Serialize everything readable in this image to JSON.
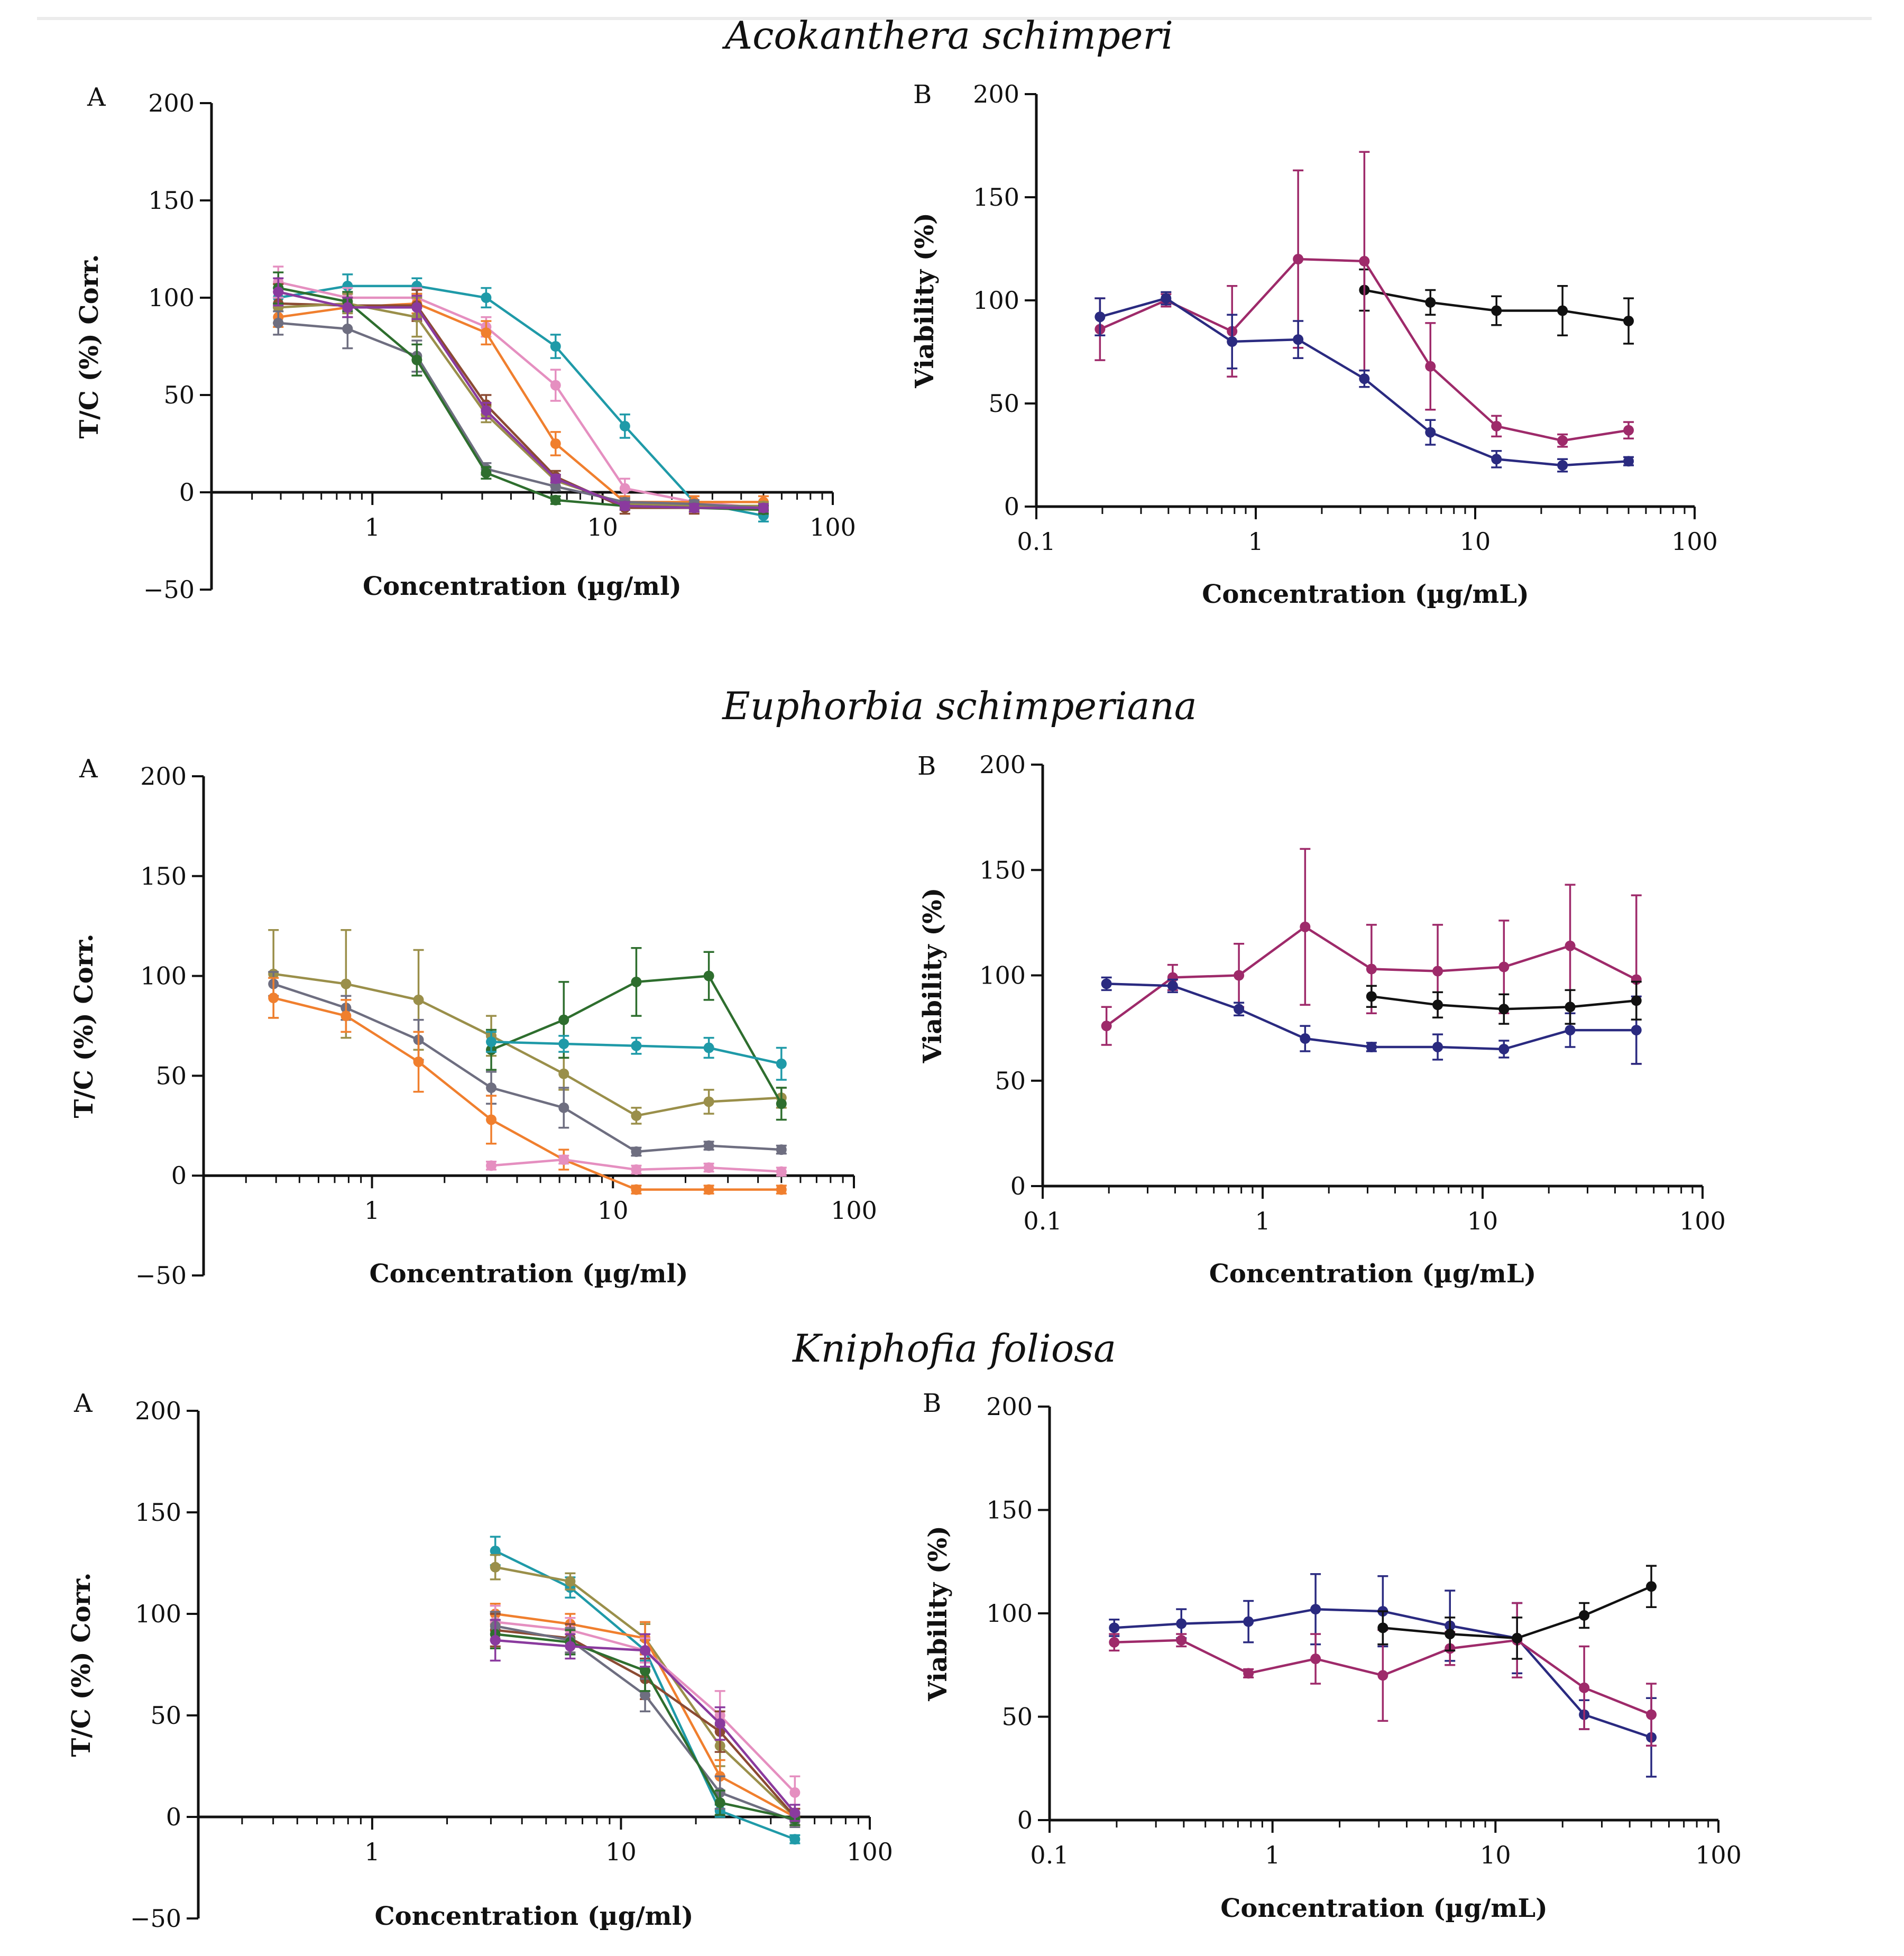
{
  "figure": {
    "section_titles": [
      "Acokanthera schimperi",
      "Euphorbia schimperiana",
      "Kniphofia foliosa"
    ]
  },
  "chart_data": [
    {
      "id": "aco-A",
      "type": "line",
      "panel_label": "A",
      "title": "Acokanthera schimperi",
      "xlabel": "Concentration (µg/ml)",
      "ylabel": "T/C (%) Corr.",
      "xscale": "log",
      "xlim": [
        0.2,
        100
      ],
      "ylim": [
        -50,
        200
      ],
      "xticks": [
        1,
        10,
        100
      ],
      "xtick_labels": [
        "1",
        "10",
        "100"
      ],
      "yticks": [
        -50,
        0,
        50,
        100,
        150,
        200
      ],
      "ytick_labels": [
        "−50",
        "0",
        "50",
        "100",
        "150",
        "200"
      ],
      "x": [
        0.39,
        0.78,
        1.56,
        3.12,
        6.25,
        12.5,
        25,
        50
      ],
      "series": [
        {
          "name": "teal",
          "color": "#1f9aa8",
          "values": [
            100,
            106,
            106,
            100,
            75,
            34,
            -5,
            -12
          ],
          "errors": [
            5,
            6,
            4,
            5,
            6,
            6,
            3,
            3
          ]
        },
        {
          "name": "pink",
          "color": "#e58fc0",
          "values": [
            108,
            100,
            100,
            85,
            55,
            2,
            -5,
            -8
          ],
          "errors": [
            8,
            5,
            5,
            5,
            8,
            5,
            3,
            3
          ]
        },
        {
          "name": "orange",
          "color": "#f07f2e",
          "values": [
            90,
            95,
            97,
            82,
            25,
            -5,
            -5,
            -5
          ],
          "errors": [
            5,
            5,
            5,
            6,
            6,
            3,
            3,
            3
          ]
        },
        {
          "name": "brown",
          "color": "#8b4a32",
          "values": [
            97,
            96,
            96,
            45,
            8,
            -8,
            -8,
            -8
          ],
          "errors": [
            10,
            6,
            8,
            5,
            3,
            3,
            3,
            3
          ]
        },
        {
          "name": "olive",
          "color": "#9a8f4a",
          "values": [
            95,
            97,
            90,
            40,
            6,
            -6,
            -7,
            -7
          ],
          "errors": [
            8,
            5,
            10,
            4,
            3,
            2,
            2,
            2
          ]
        },
        {
          "name": "gray",
          "color": "#6e6e80",
          "values": [
            87,
            84,
            70,
            12,
            3,
            -5,
            -6,
            -8
          ],
          "errors": [
            6,
            10,
            8,
            3,
            2,
            2,
            2,
            2
          ]
        },
        {
          "name": "dark green",
          "color": "#2e6e2e",
          "values": [
            105,
            98,
            68,
            10,
            -4,
            -7,
            -8,
            -9
          ],
          "errors": [
            8,
            5,
            8,
            3,
            2,
            2,
            2,
            2
          ]
        },
        {
          "name": "purple",
          "color": "#8a3a9e",
          "values": [
            103,
            95,
            95,
            42,
            7,
            -7,
            -8,
            -8
          ],
          "errors": [
            7,
            5,
            6,
            4,
            2,
            2,
            2,
            2
          ]
        }
      ]
    },
    {
      "id": "aco-B",
      "type": "line",
      "panel_label": "B",
      "title": "Acokanthera schimperi",
      "xlabel": "Concentration (µg/mL)",
      "ylabel": "Viability (%)",
      "xscale": "log",
      "xlim": [
        0.1,
        100
      ],
      "ylim": [
        0,
        200
      ],
      "xticks": [
        0.1,
        1,
        10,
        100
      ],
      "xtick_labels": [
        "0.1",
        "1",
        "10",
        "100"
      ],
      "yticks": [
        0,
        50,
        100,
        150,
        200
      ],
      "ytick_labels": [
        "0",
        "50",
        "100",
        "150",
        "200"
      ],
      "series": [
        {
          "name": "black",
          "color": "#111111",
          "x": [
            3.125,
            6.25,
            12.5,
            25,
            50
          ],
          "values": [
            105,
            99,
            95,
            95,
            90
          ],
          "errors": [
            10,
            6,
            7,
            12,
            11
          ]
        },
        {
          "name": "magenta",
          "color": "#9e2a6a",
          "x": [
            0.195,
            0.39,
            0.78,
            1.56,
            3.125,
            6.25,
            12.5,
            25,
            50
          ],
          "values": [
            86,
            100,
            85,
            120,
            119,
            68,
            39,
            32,
            37
          ],
          "errors": [
            15,
            3,
            22,
            43,
            53,
            21,
            5,
            3,
            4
          ]
        },
        {
          "name": "navy",
          "color": "#2a2a80",
          "x": [
            0.195,
            0.39,
            0.78,
            1.56,
            3.125,
            6.25,
            12.5,
            25,
            50
          ],
          "values": [
            92,
            101,
            80,
            81,
            62,
            36,
            23,
            20,
            22
          ],
          "errors": [
            9,
            3,
            13,
            9,
            4,
            6,
            4,
            3,
            2
          ]
        }
      ]
    },
    {
      "id": "eup-A",
      "type": "line",
      "panel_label": "A",
      "title": "Euphorbia schimperiana",
      "xlabel": "Concentration (µg/ml)",
      "ylabel": "T/C (%) Corr.",
      "xscale": "log",
      "xlim": [
        0.2,
        100
      ],
      "ylim": [
        -50,
        200
      ],
      "xticks": [
        1,
        10,
        100
      ],
      "xtick_labels": [
        "1",
        "10",
        "100"
      ],
      "yticks": [
        -50,
        0,
        50,
        100,
        150,
        200
      ],
      "ytick_labels": [
        "−50",
        "0",
        "50",
        "100",
        "150",
        "200"
      ],
      "series": [
        {
          "name": "olive",
          "color": "#9a8f4a",
          "x": [
            0.39,
            0.78,
            1.56,
            3.125,
            6.25,
            12.5,
            25,
            50
          ],
          "values": [
            101,
            96,
            88,
            70,
            51,
            30,
            37,
            39
          ],
          "errors": [
            22,
            27,
            25,
            10,
            8,
            4,
            6,
            5
          ]
        },
        {
          "name": "gray",
          "color": "#6e6e80",
          "x": [
            0.39,
            0.78,
            1.56,
            3.125,
            6.25,
            12.5,
            25,
            50
          ],
          "values": [
            96,
            84,
            68,
            44,
            34,
            12,
            15,
            13
          ],
          "errors": [
            6,
            6,
            10,
            8,
            10,
            2,
            2,
            2
          ]
        },
        {
          "name": "orange",
          "color": "#f07f2e",
          "x": [
            0.39,
            0.78,
            1.56,
            3.125,
            6.25,
            12.5,
            25,
            50
          ],
          "values": [
            89,
            80,
            57,
            28,
            8,
            -7,
            -7,
            -7
          ],
          "errors": [
            10,
            8,
            15,
            12,
            5,
            2,
            2,
            2
          ]
        },
        {
          "name": "dark green",
          "color": "#2e6e2e",
          "x": [
            3.125,
            6.25,
            12.5,
            25,
            50
          ],
          "values": [
            63,
            78,
            97,
            100,
            36
          ],
          "errors": [
            10,
            19,
            17,
            12,
            8
          ]
        },
        {
          "name": "teal",
          "color": "#1f9aa8",
          "x": [
            3.125,
            6.25,
            12.5,
            25,
            50
          ],
          "values": [
            67,
            66,
            65,
            64,
            56
          ],
          "errors": [
            5,
            4,
            4,
            5,
            8
          ]
        },
        {
          "name": "pink",
          "color": "#e58fc0",
          "x": [
            3.125,
            6.25,
            12.5,
            25,
            50
          ],
          "values": [
            5,
            8,
            3,
            4,
            2
          ],
          "errors": [
            2,
            2,
            2,
            2,
            2
          ]
        }
      ]
    },
    {
      "id": "eup-B",
      "type": "line",
      "panel_label": "B",
      "title": "Euphorbia schimperiana",
      "xlabel": "Concentration (µg/mL)",
      "ylabel": "Viability (%)",
      "xscale": "log",
      "xlim": [
        0.1,
        100
      ],
      "ylim": [
        0,
        200
      ],
      "xticks": [
        0.1,
        1,
        10,
        100
      ],
      "xtick_labels": [
        "0.1",
        "1",
        "10",
        "100"
      ],
      "yticks": [
        0,
        50,
        100,
        150,
        200
      ],
      "ytick_labels": [
        "0",
        "50",
        "100",
        "150",
        "200"
      ],
      "series": [
        {
          "name": "magenta",
          "color": "#9e2a6a",
          "x": [
            0.195,
            0.39,
            0.78,
            1.56,
            3.125,
            6.25,
            12.5,
            25,
            50
          ],
          "values": [
            76,
            99,
            100,
            123,
            103,
            102,
            104,
            114,
            98
          ],
          "errors": [
            9,
            6,
            15,
            37,
            21,
            22,
            22,
            29,
            40
          ]
        },
        {
          "name": "navy",
          "color": "#2a2a80",
          "x": [
            0.195,
            0.39,
            0.78,
            1.56,
            3.125,
            6.25,
            12.5,
            25,
            50
          ],
          "values": [
            96,
            95,
            84,
            70,
            66,
            66,
            65,
            74,
            74
          ],
          "errors": [
            3,
            3,
            3,
            6,
            2,
            6,
            4,
            8,
            16
          ]
        },
        {
          "name": "black",
          "color": "#111111",
          "x": [
            3.125,
            6.25,
            12.5,
            25,
            50
          ],
          "values": [
            90,
            86,
            84,
            85,
            88
          ],
          "errors": [
            5,
            6,
            7,
            8,
            9
          ]
        }
      ]
    },
    {
      "id": "kni-A",
      "type": "line",
      "panel_label": "A",
      "title": "Kniphofia foliosa",
      "xlabel": "Concentration (µg/ml)",
      "ylabel": "T/C (%) Corr.",
      "xscale": "log",
      "xlim": [
        0.2,
        100
      ],
      "ylim": [
        -50,
        200
      ],
      "xticks": [
        1,
        10,
        100
      ],
      "xtick_labels": [
        "1",
        "10",
        "100"
      ],
      "yticks": [
        -50,
        0,
        50,
        100,
        150,
        200
      ],
      "ytick_labels": [
        "−50",
        "0",
        "50",
        "100",
        "150",
        "200"
      ],
      "x": [
        3.125,
        6.25,
        12.5,
        25,
        50
      ],
      "series": [
        {
          "name": "teal",
          "color": "#1f9aa8",
          "values": [
            131,
            113,
            82,
            3,
            -11
          ],
          "errors": [
            7,
            5,
            5,
            3,
            2
          ]
        },
        {
          "name": "olive",
          "color": "#9a8f4a",
          "values": [
            123,
            116,
            88,
            35,
            0
          ],
          "errors": [
            6,
            4,
            7,
            10,
            4
          ]
        },
        {
          "name": "orange",
          "color": "#f07f2e",
          "values": [
            100,
            95,
            88,
            20,
            0
          ],
          "errors": [
            5,
            5,
            8,
            8,
            4
          ]
        },
        {
          "name": "pink",
          "color": "#e58fc0",
          "values": [
            96,
            92,
            82,
            50,
            12
          ],
          "errors": [
            8,
            6,
            6,
            12,
            8
          ]
        },
        {
          "name": "brown",
          "color": "#8b4a32",
          "values": [
            92,
            88,
            68,
            42,
            0
          ],
          "errors": [
            8,
            7,
            10,
            10,
            4
          ]
        },
        {
          "name": "gray",
          "color": "#6e6e80",
          "values": [
            94,
            87,
            60,
            12,
            -2
          ],
          "errors": [
            7,
            6,
            8,
            8,
            3
          ]
        },
        {
          "name": "dark green",
          "color": "#2e6e2e",
          "values": [
            90,
            86,
            72,
            7,
            -1
          ],
          "errors": [
            7,
            6,
            10,
            6,
            3
          ]
        },
        {
          "name": "purple",
          "color": "#8a3a9e",
          "values": [
            87,
            84,
            82,
            46,
            2
          ],
          "errors": [
            10,
            6,
            8,
            8,
            4
          ]
        }
      ]
    },
    {
      "id": "kni-B",
      "type": "line",
      "panel_label": "B",
      "title": "Kniphofia foliosa",
      "xlabel": "Concentration (µg/mL)",
      "ylabel": "Viability (%)",
      "xscale": "log",
      "xlim": [
        0.1,
        100
      ],
      "ylim": [
        0,
        200
      ],
      "xticks": [
        0.1,
        1,
        10,
        100
      ],
      "xtick_labels": [
        "0.1",
        "1",
        "10",
        "100"
      ],
      "yticks": [
        0,
        50,
        100,
        150,
        200
      ],
      "ytick_labels": [
        "0",
        "50",
        "100",
        "150",
        "200"
      ],
      "series": [
        {
          "name": "navy",
          "color": "#2a2a80",
          "x": [
            0.195,
            0.39,
            0.78,
            1.56,
            3.125,
            6.25,
            12.5,
            25,
            50
          ],
          "values": [
            93,
            95,
            96,
            102,
            101,
            94,
            88,
            51,
            40
          ],
          "errors": [
            4,
            7,
            10,
            17,
            17,
            17,
            17,
            7,
            19
          ]
        },
        {
          "name": "magenta",
          "color": "#9e2a6a",
          "x": [
            0.195,
            0.39,
            0.78,
            1.56,
            3.125,
            6.25,
            12.5,
            25,
            50
          ],
          "values": [
            86,
            87,
            71,
            78,
            70,
            83,
            87,
            64,
            51
          ],
          "errors": [
            4,
            3,
            2,
            12,
            22,
            8,
            18,
            20,
            15
          ]
        },
        {
          "name": "black",
          "color": "#111111",
          "x": [
            3.125,
            6.25,
            12.5,
            25,
            50
          ],
          "values": [
            93,
            90,
            88,
            99,
            113
          ],
          "errors": [
            8,
            8,
            10,
            6,
            10
          ]
        }
      ]
    }
  ]
}
